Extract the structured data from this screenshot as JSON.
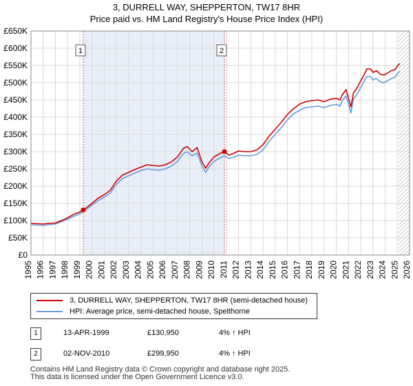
{
  "title_line1": "3, DURRELL WAY, SHEPPERTON, TW17 8HR",
  "title_line2": "Price paid vs. HM Land Registry's House Price Index (HPI)",
  "chart_data": {
    "type": "line",
    "ylim": [
      0,
      650000
    ],
    "xlim": [
      1995,
      2026
    ],
    "y_ticks": [
      {
        "value": 0,
        "label": "£0"
      },
      {
        "value": 50000,
        "label": "£50K"
      },
      {
        "value": 100000,
        "label": "£100K"
      },
      {
        "value": 150000,
        "label": "£150K"
      },
      {
        "value": 200000,
        "label": "£200K"
      },
      {
        "value": 250000,
        "label": "£250K"
      },
      {
        "value": 300000,
        "label": "£300K"
      },
      {
        "value": 350000,
        "label": "£350K"
      },
      {
        "value": 400000,
        "label": "£400K"
      },
      {
        "value": 450000,
        "label": "£450K"
      },
      {
        "value": 500000,
        "label": "£500K"
      },
      {
        "value": 550000,
        "label": "£550K"
      },
      {
        "value": 600000,
        "label": "£600K"
      },
      {
        "value": 650000,
        "label": "£650K"
      }
    ],
    "x_ticks": [
      "1995",
      "1996",
      "1997",
      "1998",
      "1999",
      "2000",
      "2001",
      "2002",
      "2003",
      "2004",
      "2005",
      "2006",
      "2007",
      "2008",
      "2009",
      "2010",
      "2011",
      "2012",
      "2013",
      "2014",
      "2015",
      "2016",
      "2017",
      "2018",
      "2019",
      "2020",
      "2021",
      "2022",
      "2023",
      "2024",
      "2025",
      "2026"
    ],
    "shaded_range": [
      1999.28,
      2010.84
    ],
    "hatched_from": 2025.1,
    "series": [
      {
        "name": "3, DURRELL WAY, SHEPPERTON, TW17 8HR (semi-detached house)",
        "color": "#cc0000",
        "points": [
          [
            1995.0,
            92000
          ],
          [
            1995.5,
            91000
          ],
          [
            1996.0,
            90000
          ],
          [
            1996.5,
            92000
          ],
          [
            1997.0,
            93000
          ],
          [
            1997.5,
            100000
          ],
          [
            1998.0,
            108000
          ],
          [
            1998.5,
            118000
          ],
          [
            1999.0,
            125000
          ],
          [
            1999.28,
            130950
          ],
          [
            1999.5,
            136000
          ],
          [
            2000.0,
            150000
          ],
          [
            2000.5,
            165000
          ],
          [
            2001.0,
            175000
          ],
          [
            2001.5,
            188000
          ],
          [
            2002.0,
            215000
          ],
          [
            2002.5,
            232000
          ],
          [
            2003.0,
            240000
          ],
          [
            2003.5,
            248000
          ],
          [
            2004.0,
            255000
          ],
          [
            2004.5,
            262000
          ],
          [
            2005.0,
            260000
          ],
          [
            2005.5,
            258000
          ],
          [
            2006.0,
            262000
          ],
          [
            2006.5,
            270000
          ],
          [
            2007.0,
            285000
          ],
          [
            2007.5,
            310000
          ],
          [
            2007.8,
            315000
          ],
          [
            2008.2,
            300000
          ],
          [
            2008.6,
            312000
          ],
          [
            2009.0,
            270000
          ],
          [
            2009.3,
            252000
          ],
          [
            2009.6,
            268000
          ],
          [
            2010.0,
            285000
          ],
          [
            2010.5,
            295000
          ],
          [
            2010.84,
            299950
          ],
          [
            2011.2,
            290000
          ],
          [
            2011.6,
            295000
          ],
          [
            2012.0,
            302000
          ],
          [
            2012.5,
            300000
          ],
          [
            2013.0,
            300000
          ],
          [
            2013.5,
            305000
          ],
          [
            2014.0,
            320000
          ],
          [
            2014.5,
            345000
          ],
          [
            2015.0,
            365000
          ],
          [
            2015.5,
            385000
          ],
          [
            2016.0,
            408000
          ],
          [
            2016.5,
            425000
          ],
          [
            2017.0,
            438000
          ],
          [
            2017.5,
            445000
          ],
          [
            2018.0,
            448000
          ],
          [
            2018.5,
            450000
          ],
          [
            2019.0,
            445000
          ],
          [
            2019.5,
            452000
          ],
          [
            2020.0,
            455000
          ],
          [
            2020.3,
            450000
          ],
          [
            2020.5,
            465000
          ],
          [
            2020.8,
            480000
          ],
          [
            2021.0,
            455000
          ],
          [
            2021.2,
            430000
          ],
          [
            2021.4,
            470000
          ],
          [
            2021.7,
            485000
          ],
          [
            2022.0,
            505000
          ],
          [
            2022.3,
            525000
          ],
          [
            2022.5,
            540000
          ],
          [
            2022.8,
            540000
          ],
          [
            2023.0,
            530000
          ],
          [
            2023.3,
            535000
          ],
          [
            2023.6,
            525000
          ],
          [
            2023.9,
            522000
          ],
          [
            2024.2,
            528000
          ],
          [
            2024.5,
            535000
          ],
          [
            2024.8,
            538000
          ],
          [
            2025.0,
            548000
          ],
          [
            2025.2,
            556000
          ]
        ]
      },
      {
        "name": "HPI: Average price, semi-detached house, Spelthorne",
        "color": "#6699dd",
        "points": [
          [
            1995.0,
            88000
          ],
          [
            1995.5,
            87000
          ],
          [
            1996.0,
            86000
          ],
          [
            1996.5,
            88000
          ],
          [
            1997.0,
            90000
          ],
          [
            1997.5,
            97000
          ],
          [
            1998.0,
            104000
          ],
          [
            1998.5,
            112000
          ],
          [
            1999.0,
            120000
          ],
          [
            1999.28,
            125900
          ],
          [
            1999.5,
            131000
          ],
          [
            2000.0,
            145000
          ],
          [
            2000.5,
            158000
          ],
          [
            2001.0,
            168000
          ],
          [
            2001.5,
            180000
          ],
          [
            2002.0,
            205000
          ],
          [
            2002.5,
            222000
          ],
          [
            2003.0,
            230000
          ],
          [
            2003.5,
            238000
          ],
          [
            2004.0,
            245000
          ],
          [
            2004.5,
            250000
          ],
          [
            2005.0,
            248000
          ],
          [
            2005.5,
            246000
          ],
          [
            2006.0,
            250000
          ],
          [
            2006.5,
            258000
          ],
          [
            2007.0,
            272000
          ],
          [
            2007.5,
            295000
          ],
          [
            2007.8,
            300000
          ],
          [
            2008.2,
            288000
          ],
          [
            2008.6,
            296000
          ],
          [
            2009.0,
            258000
          ],
          [
            2009.3,
            240000
          ],
          [
            2009.6,
            256000
          ],
          [
            2010.0,
            272000
          ],
          [
            2010.5,
            282000
          ],
          [
            2010.84,
            288000
          ],
          [
            2011.2,
            280000
          ],
          [
            2011.6,
            284000
          ],
          [
            2012.0,
            290000
          ],
          [
            2012.5,
            288000
          ],
          [
            2013.0,
            288000
          ],
          [
            2013.5,
            292000
          ],
          [
            2014.0,
            305000
          ],
          [
            2014.5,
            330000
          ],
          [
            2015.0,
            350000
          ],
          [
            2015.5,
            370000
          ],
          [
            2016.0,
            392000
          ],
          [
            2016.5,
            410000
          ],
          [
            2017.0,
            420000
          ],
          [
            2017.5,
            428000
          ],
          [
            2018.0,
            430000
          ],
          [
            2018.5,
            432000
          ],
          [
            2019.0,
            428000
          ],
          [
            2019.5,
            434000
          ],
          [
            2020.0,
            437000
          ],
          [
            2020.3,
            432000
          ],
          [
            2020.5,
            448000
          ],
          [
            2020.8,
            462000
          ],
          [
            2021.0,
            438000
          ],
          [
            2021.2,
            412000
          ],
          [
            2021.4,
            452000
          ],
          [
            2021.7,
            467000
          ],
          [
            2022.0,
            486000
          ],
          [
            2022.3,
            505000
          ],
          [
            2022.5,
            518000
          ],
          [
            2022.8,
            518000
          ],
          [
            2023.0,
            508000
          ],
          [
            2023.3,
            512000
          ],
          [
            2023.6,
            503000
          ],
          [
            2023.9,
            500000
          ],
          [
            2024.2,
            506000
          ],
          [
            2024.5,
            512000
          ],
          [
            2024.8,
            516000
          ],
          [
            2025.0,
            526000
          ],
          [
            2025.2,
            534000
          ]
        ]
      }
    ],
    "sale_markers": [
      {
        "label": "1",
        "x": 1999.28,
        "y": 130950
      },
      {
        "label": "2",
        "x": 2010.84,
        "y": 299950
      }
    ]
  },
  "legend": {
    "property_label": "3, DURRELL WAY, SHEPPERTON, TW17 8HR (semi-detached house)",
    "hpi_label": "HPI: Average price, semi-detached house, Spelthorne"
  },
  "sales": [
    {
      "num": "1",
      "date": "13-APR-1999",
      "price": "£130,950",
      "hpi": "4% ↑ HPI"
    },
    {
      "num": "2",
      "date": "02-NOV-2010",
      "price": "£299,950",
      "hpi": "4% ↑ HPI"
    }
  ],
  "footer_line1": "Contains HM Land Registry data © Crown copyright and database right 2025.",
  "footer_line2": "This data is licensed under the Open Government Licence v3.0.",
  "colors": {
    "property": "#cc0000",
    "hpi": "#6699dd",
    "shade": "#e8eef8",
    "grid": "#d8d8d8"
  }
}
